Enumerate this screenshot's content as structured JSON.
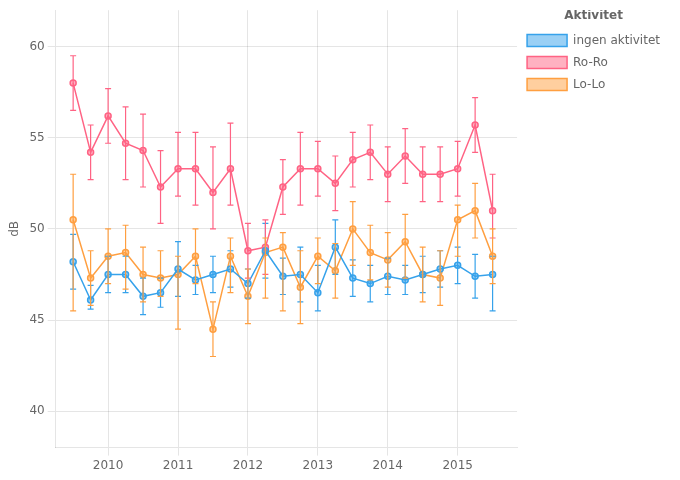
{
  "chart_data": {
    "type": "line",
    "ylabel": "dB",
    "legend_title": "Aktivitet",
    "legend": "upper right",
    "grid": true,
    "marker": "o",
    "xlim": [
      2009.25,
      2015.85
    ],
    "xticks": [
      2010,
      2011,
      2012,
      2013,
      2014,
      2015
    ],
    "ylim": [
      38,
      62
    ],
    "yticks": [
      40,
      45,
      50,
      55,
      60
    ],
    "series": [
      {
        "name": "ingen aktivitet",
        "x": [
          2009.5,
          2009.75,
          2010.0,
          2010.25,
          2010.5,
          2010.75,
          2011.0,
          2011.25,
          2011.5,
          2011.75,
          2012.0,
          2012.25,
          2012.5,
          2012.75,
          2013.0,
          2013.25,
          2013.5,
          2013.75,
          2014.0,
          2014.25,
          2014.5,
          2014.75,
          2015.0,
          2015.25,
          2015.5
        ],
        "values": [
          48.2,
          46.1,
          47.5,
          47.5,
          46.3,
          46.5,
          47.8,
          47.2,
          47.5,
          47.8,
          47.0,
          48.8,
          47.4,
          47.5,
          46.5,
          49.0,
          47.3,
          47.0,
          47.4,
          47.2,
          47.5,
          47.8,
          48.0,
          47.4,
          47.5
        ],
        "yerr_low": [
          1.5,
          0.5,
          1.0,
          1.0,
          1.0,
          0.8,
          1.5,
          0.8,
          1.0,
          1.0,
          0.8,
          1.5,
          1.0,
          1.5,
          1.0,
          1.5,
          1.0,
          1.0,
          1.0,
          0.8,
          1.0,
          1.0,
          1.0,
          1.2,
          2.0
        ],
        "yerr_high": [
          1.5,
          0.8,
          1.0,
          1.0,
          1.0,
          0.8,
          1.5,
          0.8,
          1.0,
          1.0,
          0.8,
          1.5,
          1.0,
          1.5,
          1.5,
          1.5,
          1.0,
          1.0,
          1.0,
          0.8,
          1.0,
          1.0,
          1.0,
          1.2,
          1.0
        ]
      },
      {
        "name": "Ro-Ro",
        "x": [
          2009.5,
          2009.75,
          2010.0,
          2010.25,
          2010.5,
          2010.75,
          2011.0,
          2011.25,
          2011.5,
          2011.75,
          2012.0,
          2012.25,
          2012.5,
          2012.75,
          2013.0,
          2013.25,
          2013.5,
          2013.75,
          2014.0,
          2014.25,
          2014.5,
          2014.75,
          2015.0,
          2015.25,
          2015.5
        ],
        "values": [
          58.0,
          54.2,
          56.2,
          54.7,
          54.3,
          52.3,
          53.3,
          53.3,
          52.0,
          53.3,
          48.8,
          49.0,
          52.3,
          53.3,
          53.3,
          52.5,
          53.8,
          54.2,
          53.0,
          54.0,
          53.0,
          53.0,
          53.3,
          55.7,
          51.0
        ],
        "yerr_low": [
          1.5,
          1.5,
          1.5,
          2.0,
          2.0,
          2.0,
          1.5,
          2.0,
          2.0,
          2.0,
          1.5,
          1.5,
          1.5,
          2.0,
          1.5,
          1.5,
          1.5,
          1.5,
          1.5,
          1.5,
          1.5,
          1.5,
          1.5,
          1.5,
          1.5
        ],
        "yerr_high": [
          1.5,
          1.5,
          1.5,
          2.0,
          2.0,
          2.0,
          2.0,
          2.0,
          2.5,
          2.5,
          1.5,
          1.5,
          1.5,
          2.0,
          1.5,
          1.5,
          1.5,
          1.5,
          1.5,
          1.5,
          1.5,
          1.5,
          1.5,
          1.5,
          2.0
        ]
      },
      {
        "name": "Lo-Lo",
        "x": [
          2009.5,
          2009.75,
          2010.0,
          2010.25,
          2010.5,
          2010.75,
          2011.0,
          2011.25,
          2011.5,
          2011.75,
          2012.0,
          2012.25,
          2012.5,
          2012.75,
          2013.0,
          2013.25,
          2013.5,
          2013.75,
          2014.0,
          2014.25,
          2014.5,
          2014.75,
          2015.0,
          2015.25,
          2015.5
        ],
        "values": [
          50.5,
          47.3,
          48.5,
          48.7,
          47.5,
          47.3,
          47.5,
          48.5,
          44.5,
          48.5,
          46.3,
          48.7,
          49.0,
          46.8,
          48.5,
          47.7,
          50.0,
          48.7,
          48.3,
          49.3,
          47.5,
          47.3,
          50.5,
          51.0,
          48.5
        ],
        "yerr_low": [
          5.0,
          1.5,
          1.5,
          2.0,
          1.5,
          1.0,
          3.0,
          1.5,
          1.5,
          2.0,
          1.5,
          2.5,
          3.5,
          2.0,
          1.5,
          1.5,
          2.0,
          1.5,
          1.5,
          2.0,
          1.5,
          1.5,
          2.0,
          1.5,
          1.5
        ],
        "yerr_high": [
          2.5,
          1.5,
          1.5,
          1.5,
          1.5,
          1.5,
          1.0,
          1.5,
          1.5,
          1.0,
          1.5,
          0.8,
          0.8,
          2.0,
          1.0,
          1.5,
          1.5,
          1.5,
          1.5,
          1.5,
          1.5,
          1.5,
          0.8,
          1.5,
          1.5
        ]
      }
    ]
  }
}
